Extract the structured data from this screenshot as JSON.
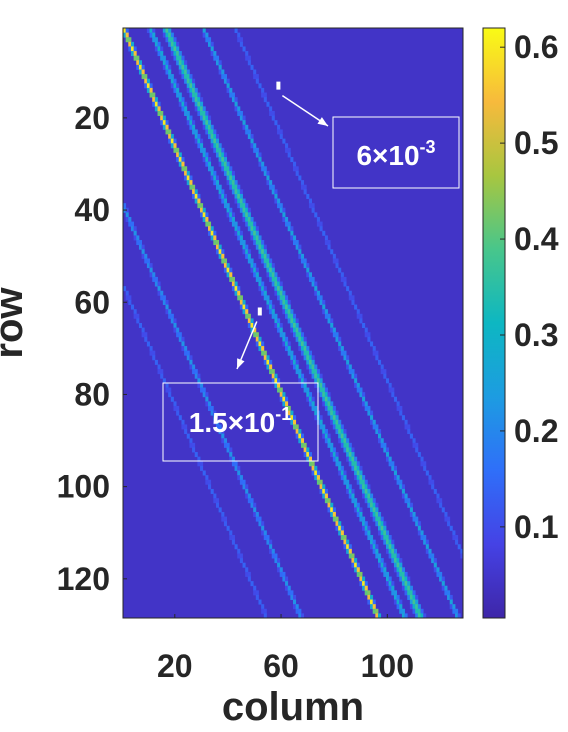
{
  "chart_data": {
    "type": "heatmap",
    "title": "",
    "xlabel": "column",
    "ylabel": "row",
    "xlim": [
      1,
      128
    ],
    "ylim": [
      1,
      128
    ],
    "x_ticks": [
      20,
      60,
      100
    ],
    "y_ticks": [
      20,
      40,
      60,
      80,
      100,
      120
    ],
    "colorbar": {
      "colormap": "parula",
      "range": [
        0.005,
        0.62
      ],
      "ticks": [
        0.1,
        0.2,
        0.3,
        0.4,
        0.5,
        0.6
      ],
      "tick_labels": [
        "0.1",
        "0.2",
        "0.3",
        "0.4",
        "0.5",
        "0.6"
      ]
    },
    "background_value": 0.04,
    "bands": [
      {
        "start_col": 0,
        "slope_rows_per_col": 1.333,
        "width": 1.0,
        "peak": 0.6
      },
      {
        "start_col": 10,
        "slope_rows_per_col": 1.333,
        "width": 1.2,
        "peak": 0.28
      },
      {
        "start_col": 16,
        "slope_rows_per_col": 1.333,
        "width": 1.8,
        "peak": 0.38
      },
      {
        "start_col": 30,
        "slope_rows_per_col": 1.333,
        "width": 1.0,
        "peak": 0.25
      },
      {
        "start_col": 42,
        "slope_rows_per_col": 1.333,
        "width": 1.0,
        "peak": 0.14
      },
      {
        "start_col": -29,
        "slope_rows_per_col": 1.333,
        "width": 1.0,
        "peak": 0.22
      },
      {
        "start_col": -42,
        "slope_rows_per_col": 1.333,
        "width": 1.0,
        "peak": 0.14
      }
    ],
    "annotations": [
      {
        "text": "6×10",
        "exponent": "-3",
        "point_col": 59,
        "point_row": 13
      },
      {
        "text": "1.5×10",
        "exponent": "-1",
        "point_col": 52,
        "point_row": 62
      }
    ]
  }
}
